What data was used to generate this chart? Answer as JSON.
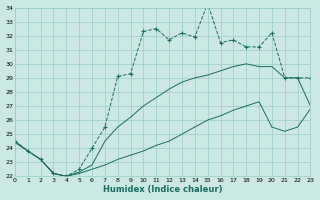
{
  "xlabel": "Humidex (Indice chaleur)",
  "bg_color": "#cce8e4",
  "line_color": "#1a6b60",
  "grid_color": "#99ccc6",
  "xmin": 0,
  "xmax": 23,
  "ymin": 22,
  "ymax": 34,
  "series": [
    {
      "x": [
        0,
        1,
        2,
        3,
        4,
        5,
        6,
        7,
        8,
        9,
        10,
        11,
        12,
        13,
        14,
        15,
        16,
        17,
        18,
        19,
        20,
        21,
        22,
        23
      ],
      "y": [
        24.5,
        23.8,
        23.2,
        22.2,
        22.0,
        22.5,
        24.0,
        25.5,
        29.1,
        29.3,
        32.3,
        32.5,
        31.7,
        32.2,
        31.9,
        34.3,
        31.5,
        31.7,
        31.2,
        31.2,
        32.2,
        29.0,
        29.0,
        29.0
      ],
      "marker": "+",
      "linestyle": "--"
    },
    {
      "x": [
        0,
        1,
        2,
        3,
        4,
        5,
        6,
        7,
        8,
        9,
        10,
        11,
        12,
        13,
        14,
        15,
        16,
        17,
        18,
        19,
        20,
        21,
        22,
        23
      ],
      "y": [
        24.5,
        23.8,
        23.2,
        22.2,
        22.0,
        22.3,
        22.8,
        24.5,
        25.5,
        26.2,
        27.0,
        27.6,
        28.2,
        28.7,
        29.0,
        29.2,
        29.5,
        29.8,
        30.0,
        29.8,
        29.8,
        29.0,
        29.0,
        27.0
      ],
      "marker": null,
      "linestyle": "-"
    },
    {
      "x": [
        0,
        1,
        2,
        3,
        4,
        5,
        6,
        7,
        8,
        9,
        10,
        11,
        12,
        13,
        14,
        15,
        16,
        17,
        18,
        19,
        20,
        21,
        22,
        23
      ],
      "y": [
        24.4,
        23.8,
        23.2,
        22.2,
        22.0,
        22.2,
        22.5,
        22.8,
        23.2,
        23.5,
        23.8,
        24.2,
        24.5,
        25.0,
        25.5,
        26.0,
        26.3,
        26.7,
        27.0,
        27.3,
        25.5,
        25.2,
        25.5,
        26.8
      ],
      "marker": null,
      "linestyle": "-"
    }
  ]
}
